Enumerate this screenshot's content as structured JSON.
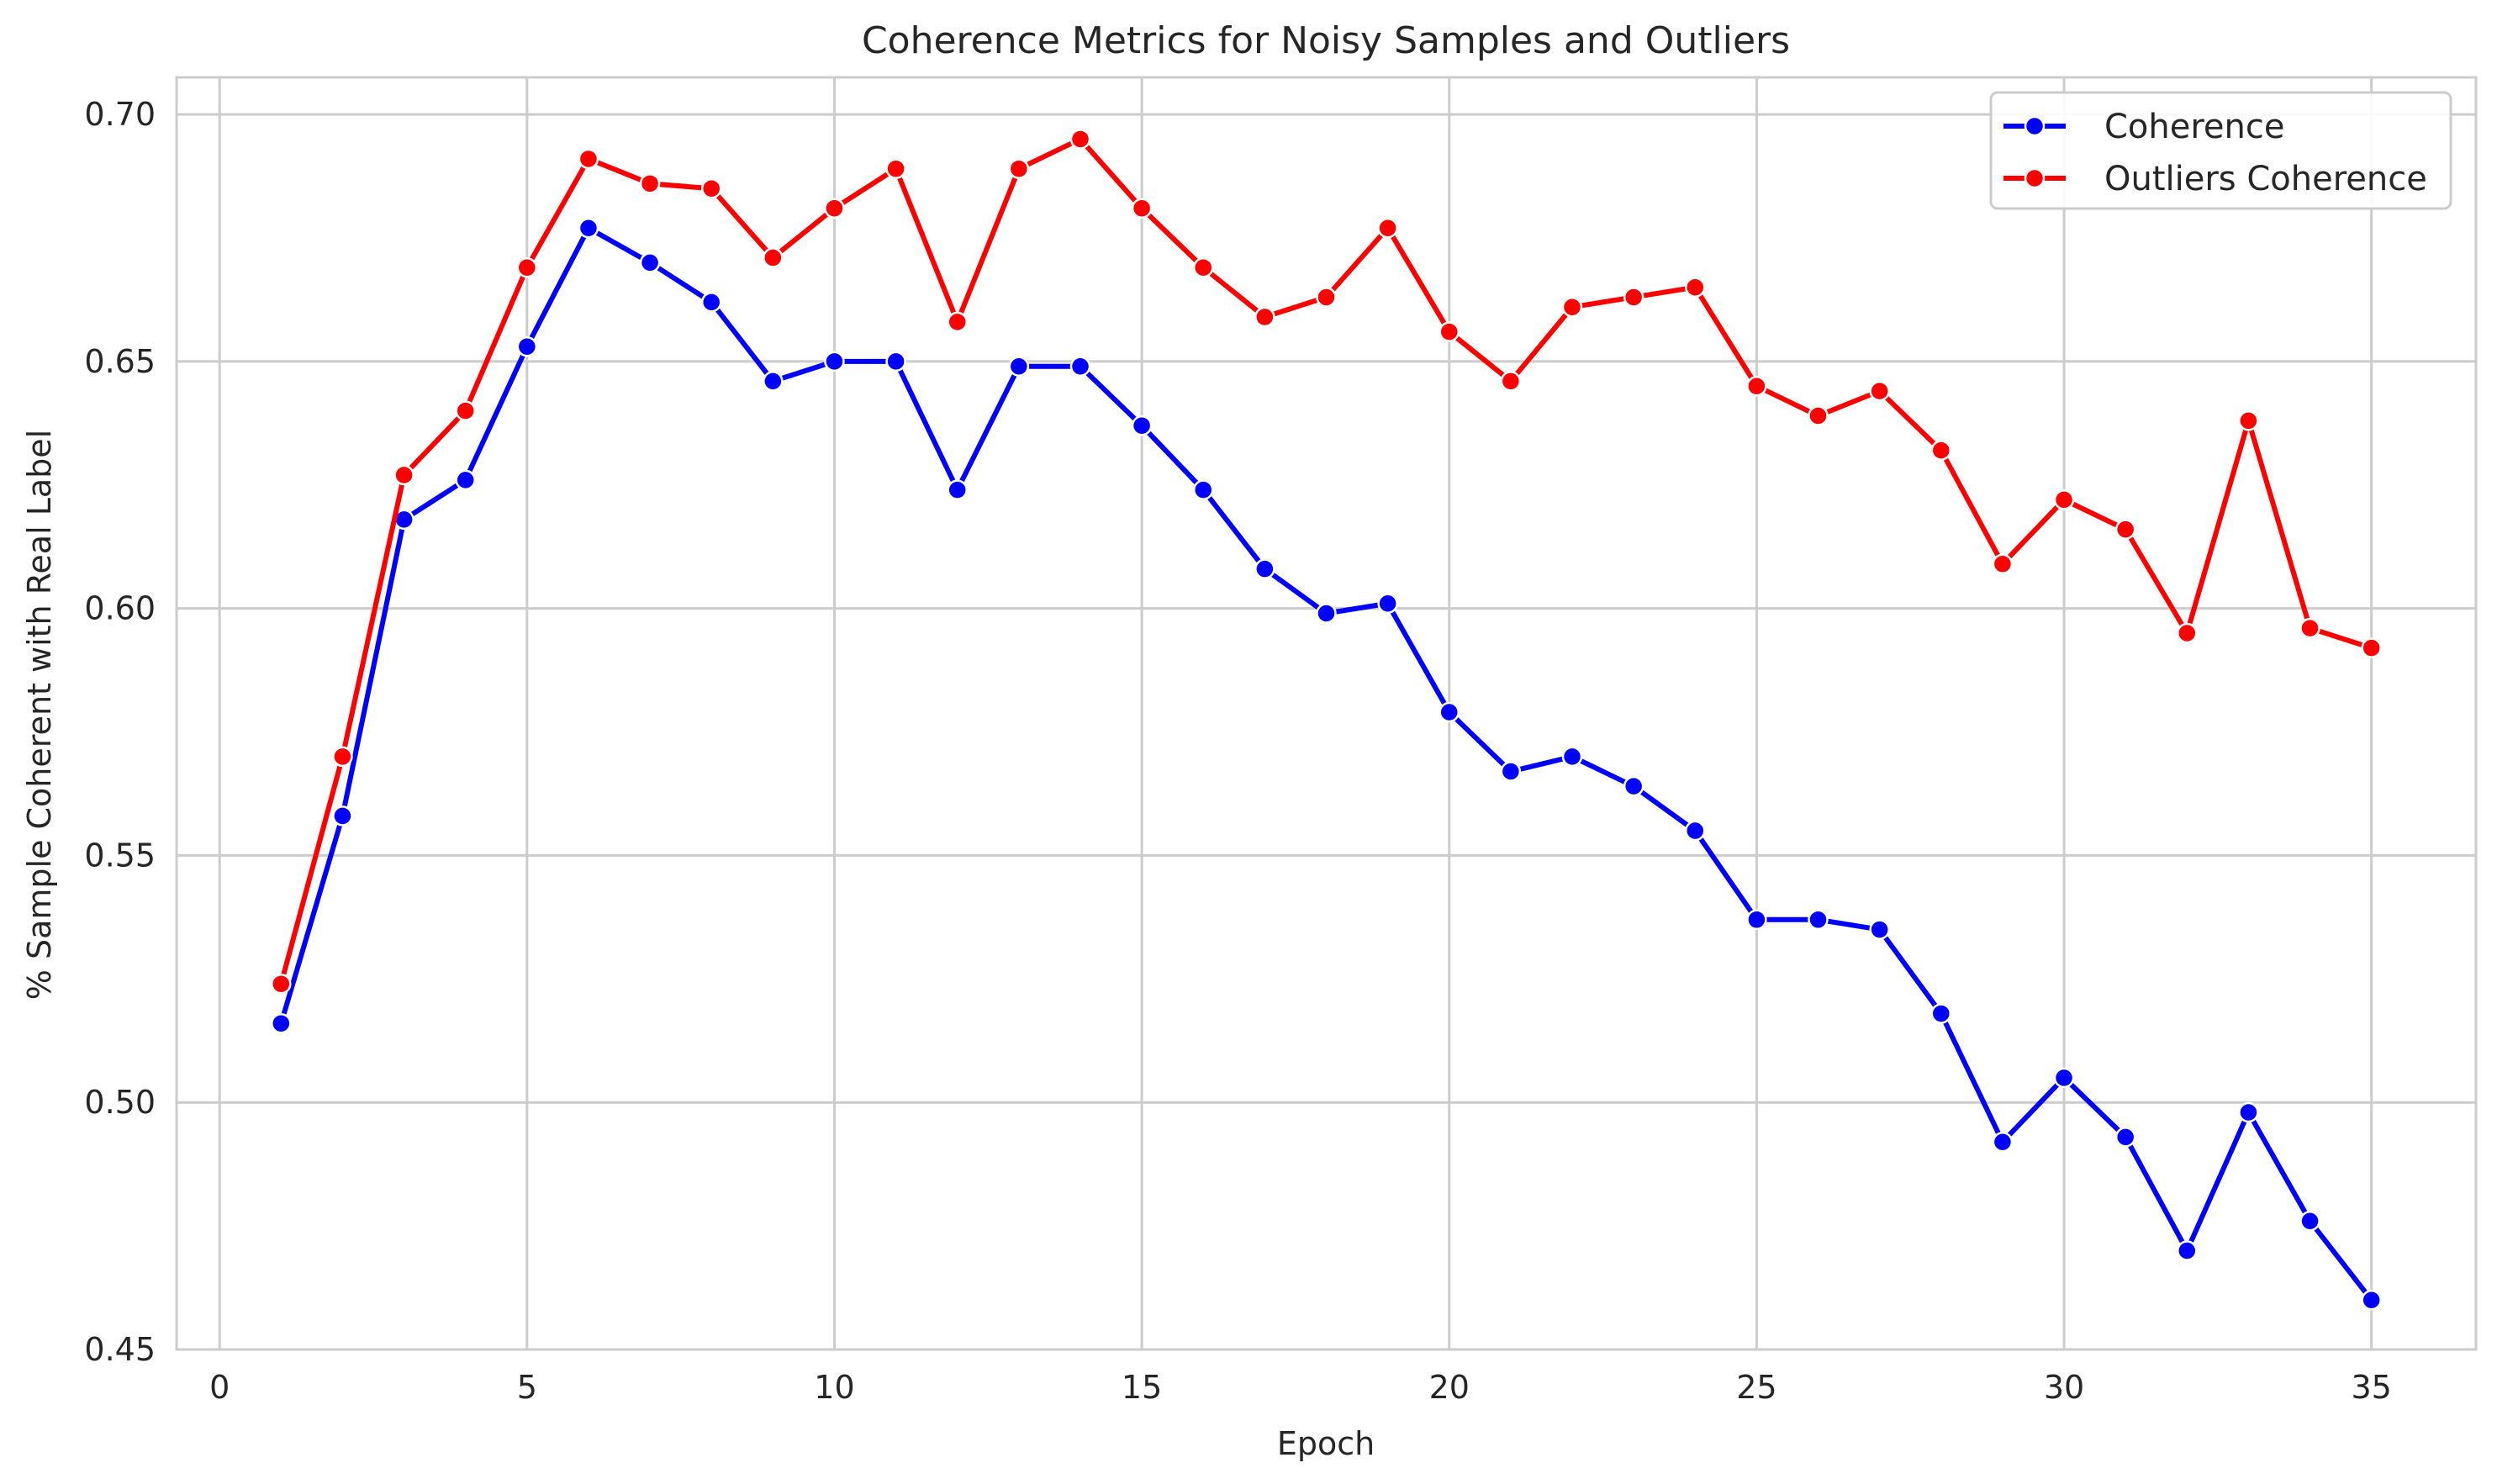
{
  "chart_data": {
    "type": "line",
    "title": "Coherence Metrics for Noisy Samples and Outliers",
    "xlabel": "Epoch",
    "ylabel": "% Sample Coherent with Real Label",
    "xlim": [
      -0.7,
      36.7
    ],
    "ylim": [
      0.45,
      0.7075
    ],
    "xticks": [
      0,
      5,
      10,
      15,
      20,
      25,
      30,
      35
    ],
    "yticks": [
      0.45,
      0.5,
      0.55,
      0.6,
      0.65,
      0.7
    ],
    "ytick_labels": [
      "0.45",
      "0.50",
      "0.55",
      "0.60",
      "0.65",
      "0.70"
    ],
    "grid": true,
    "legend_position": "top-right",
    "x": [
      1,
      2,
      3,
      4,
      5,
      6,
      7,
      8,
      9,
      10,
      11,
      12,
      13,
      14,
      15,
      16,
      17,
      18,
      19,
      20,
      21,
      22,
      23,
      24,
      25,
      26,
      27,
      28,
      29,
      30,
      31,
      32,
      33,
      34,
      35
    ],
    "series": [
      {
        "name": "Coherence",
        "color": "#0000ff",
        "values": [
          0.516,
          0.558,
          0.618,
          0.626,
          0.653,
          0.677,
          0.67,
          0.662,
          0.646,
          0.65,
          0.65,
          0.624,
          0.649,
          0.649,
          0.637,
          0.624,
          0.608,
          0.599,
          0.601,
          0.579,
          0.567,
          0.57,
          0.564,
          0.555,
          0.537,
          0.537,
          0.535,
          0.518,
          0.492,
          0.505,
          0.493,
          0.47,
          0.498,
          0.476,
          0.46
        ]
      },
      {
        "name": "Outliers Coherence",
        "color": "#ff0000",
        "values": [
          0.524,
          0.57,
          0.627,
          0.64,
          0.669,
          0.691,
          0.686,
          0.685,
          0.671,
          0.681,
          0.689,
          0.658,
          0.689,
          0.695,
          0.681,
          0.669,
          0.659,
          0.663,
          0.677,
          0.656,
          0.646,
          0.661,
          0.663,
          0.665,
          0.645,
          0.639,
          0.644,
          0.632,
          0.609,
          0.622,
          0.616,
          0.595,
          0.638,
          0.596,
          0.592
        ]
      }
    ]
  }
}
